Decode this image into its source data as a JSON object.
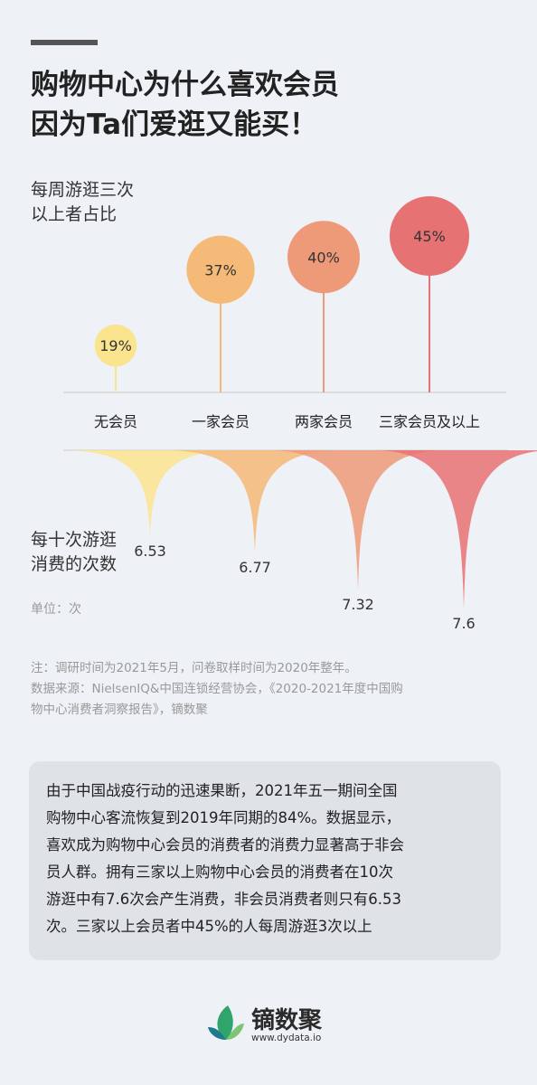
{
  "header": {
    "title_line1": "购物中心为什么喜欢会员",
    "title_line2": "因为Ta们爱逛又能买！"
  },
  "chart_data": [
    {
      "type": "scatter",
      "ylabel_lines": [
        "每周游逛三次",
        "以上者占比"
      ],
      "categories": [
        "无会员",
        "一家会员",
        "两家会员",
        "三家会员及以上"
      ],
      "values": [
        19,
        37,
        40,
        45
      ],
      "value_labels": [
        "19%",
        "37%",
        "40%",
        "45%"
      ],
      "colors": [
        "#fbe48e",
        "#f5b978",
        "#ee9a79",
        "#e77273"
      ]
    },
    {
      "type": "area",
      "ylabel_lines": [
        "每十次游逛",
        "消费的次数"
      ],
      "unit": "单位：次",
      "categories": [
        "无会员",
        "一家会员",
        "两家会员",
        "三家会员及以上"
      ],
      "values": [
        6.53,
        6.77,
        7.32,
        7.6
      ],
      "value_labels": [
        "6.53",
        "6.77",
        "7.32",
        "7.6"
      ],
      "colors": [
        "#fbe48e",
        "#f5b978",
        "#ee9a79",
        "#e77273"
      ]
    }
  ],
  "notes": {
    "line1": "注：调研时间为2021年5月，问卷取样时间为2020年整年。",
    "line2": "数据来源：NielsenIQ&中国连锁经营协会，《2020-2021年度中国购",
    "line3": "物中心消费者洞察报告》，镝数聚"
  },
  "summary": {
    "line1": "由于中国战疫行动的迅速果断，2021年五一期间全国",
    "line2": "购物中心客流恢复到2019年同期的84%。数据显示，",
    "line3": "喜欢成为购物中心会员的消费者的消费力显著高于非会",
    "line4": "员人群。拥有三家以上购物中心会员的消费者在10次",
    "line5": "游逛中有7.6次会产生消费，非会员消费者则只有6.53",
    "line6": "次。三家以上会员者中45%的人每周游逛3次以上"
  },
  "logo": {
    "name": "镝数聚",
    "url": "www.dydata.io",
    "colors": [
      "#2fa56b",
      "#7cc576",
      "#1f7a8c"
    ]
  }
}
